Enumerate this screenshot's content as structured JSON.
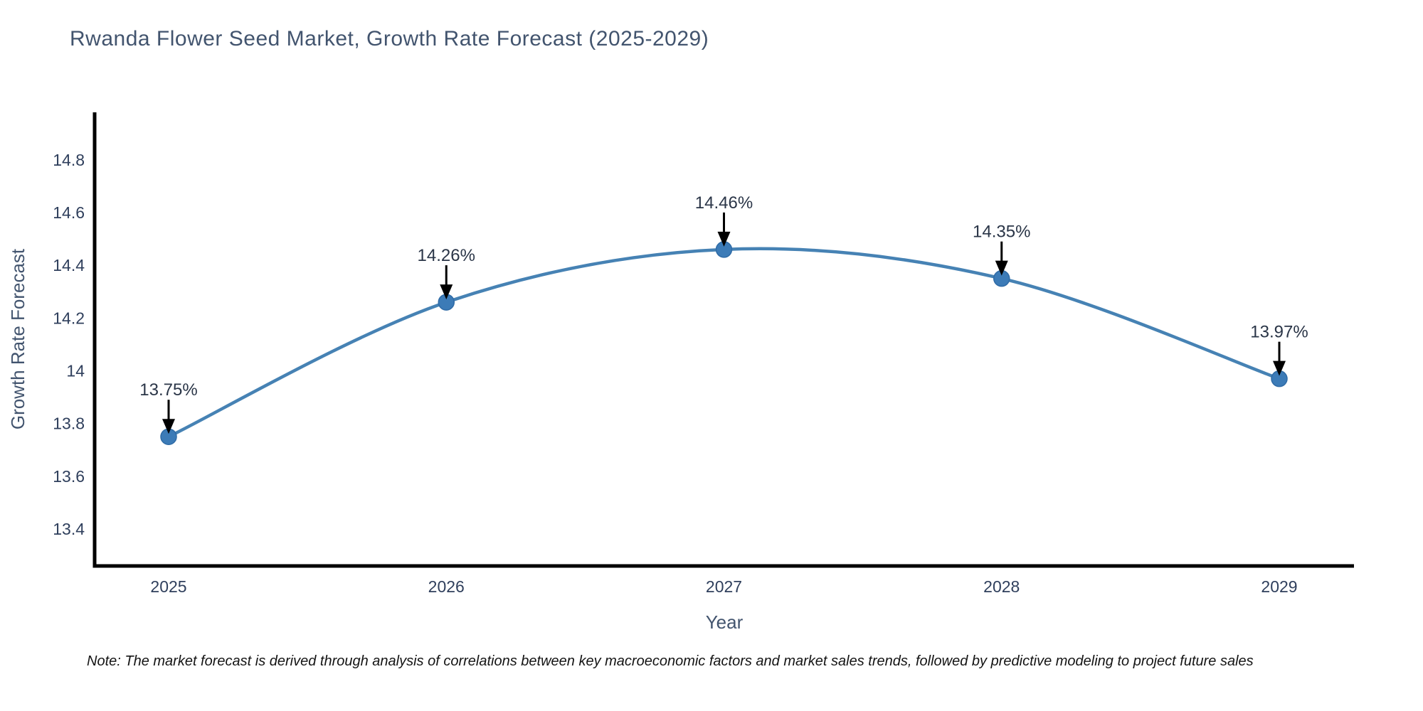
{
  "title": "Rwanda Flower Seed Market, Growth Rate Forecast (2025-2029)",
  "note": "Note: The market forecast is derived through analysis of correlations between key macroeconomic factors and market sales trends, followed by predictive modeling to project future sales",
  "chart_data": {
    "type": "line",
    "curve": "spline",
    "title": "Rwanda Flower Seed Market, Growth Rate Forecast (2025-2029)",
    "xlabel": "Year",
    "ylabel": "Growth Rate Forecast",
    "x": [
      2025,
      2026,
      2027,
      2028,
      2029
    ],
    "y": [
      13.75,
      14.26,
      14.46,
      14.35,
      13.97
    ],
    "point_labels": [
      "13.75%",
      "14.26%",
      "14.46%",
      "14.35%",
      "13.97%"
    ],
    "ytick_values": [
      13.4,
      13.6,
      13.8,
      14.0,
      14.2,
      14.4,
      14.6,
      14.8
    ],
    "ytick_labels": [
      "13.4",
      "13.6",
      "13.8",
      "14",
      "14.2",
      "14.4",
      "14.6",
      "14.8"
    ],
    "ylim": [
      13.26,
      14.98
    ],
    "grid": false,
    "legend": "none",
    "annotations_have_arrows": true
  },
  "colors": {
    "line": "#4682b4",
    "marker_fill": "#3c7bb7",
    "marker_edge": "#2f6ba6",
    "axis_line": "#000000",
    "tick_text": "#2f3f5c",
    "axis_title_text": "#42546e",
    "annotation_text": "#2a3547",
    "arrow": "#000000",
    "title_text": "#42546e",
    "note_text": "#141414",
    "background": "#ffffff"
  }
}
